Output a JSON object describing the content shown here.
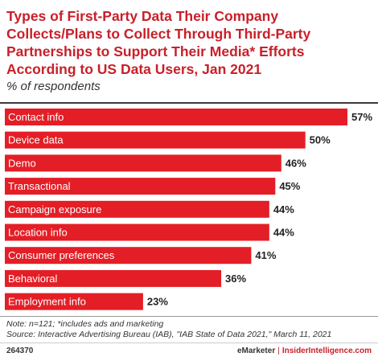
{
  "header": {
    "title": "Types of First-Party Data Their Company Collects/Plans to Collect Through Third-Party Partnerships to Support Their Media* Efforts According to US Data Users, Jan 2021",
    "subtitle": "% of respondents"
  },
  "colors": {
    "bar": "#e41e26",
    "title": "#c8202a"
  },
  "chart_data": {
    "type": "bar",
    "orientation": "horizontal",
    "categories": [
      "Contact info",
      "Device data",
      "Demo",
      "Transactional",
      "Campaign exposure",
      "Location info",
      "Consumer preferences",
      "Behavioral",
      "Employment info"
    ],
    "values": [
      57,
      50,
      46,
      45,
      44,
      44,
      41,
      36,
      23
    ],
    "value_labels": [
      "57%",
      "50%",
      "46%",
      "45%",
      "44%",
      "44%",
      "41%",
      "36%",
      "23%"
    ],
    "xlim": [
      0,
      57
    ],
    "grid": false,
    "legend": "none"
  },
  "footer": {
    "note": "Note: n=121; *includes ads and marketing",
    "source": "Source: Interactive Advertising Bureau (IAB), \"IAB State of Data 2021,\" March 11, 2021",
    "chart_id": "264370",
    "brand_emarketer": "eMarketer",
    "brand_separator": "|",
    "brand_insider": "InsiderIntelligence.com"
  }
}
